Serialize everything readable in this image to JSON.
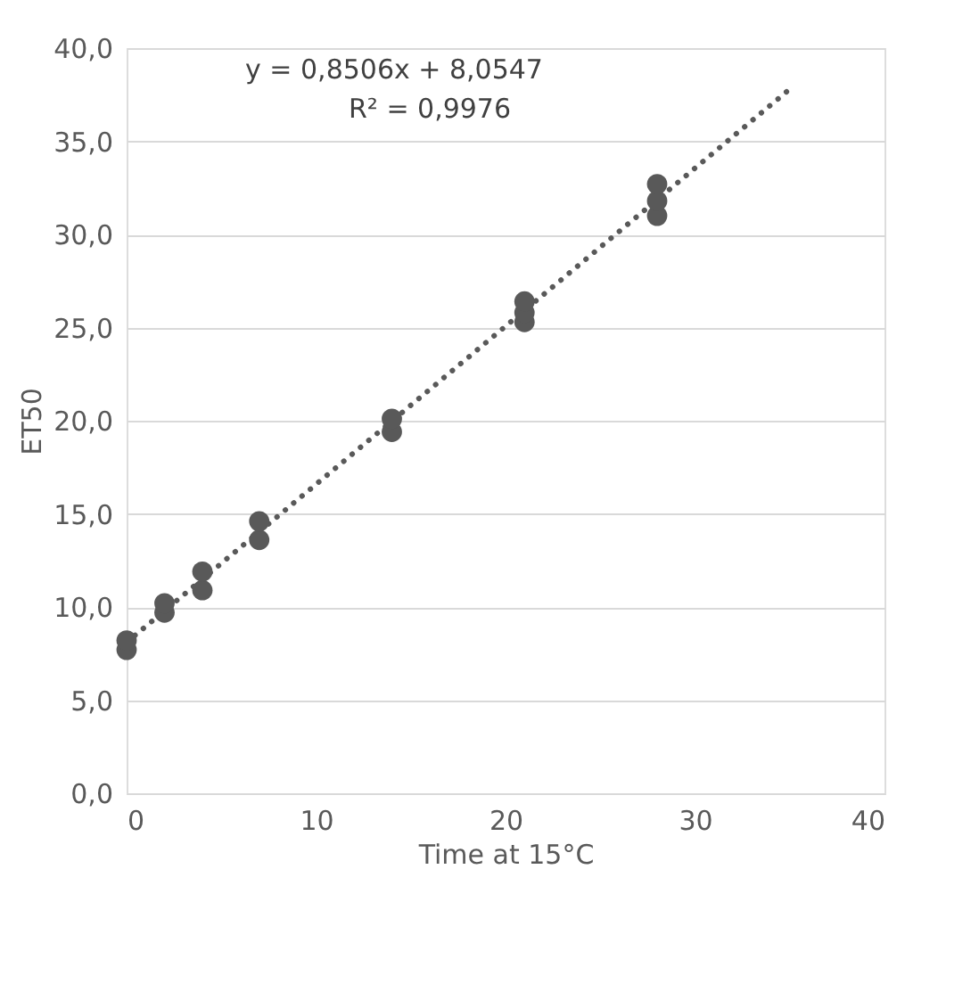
{
  "chart_data": {
    "type": "scatter",
    "xlabel": "Time at 15°C",
    "ylabel": "ET50",
    "xlim": [
      0,
      40
    ],
    "xticks": [
      0,
      10,
      20,
      30,
      40
    ],
    "ylim": [
      0,
      40
    ],
    "yticks": [
      {
        "value": 0,
        "label": "0,0"
      },
      {
        "value": 5,
        "label": "5,0"
      },
      {
        "value": 10,
        "label": "10,0"
      },
      {
        "value": 15,
        "label": "15,0"
      },
      {
        "value": 20,
        "label": "20,0"
      },
      {
        "value": 25,
        "label": "25,0"
      },
      {
        "value": 30,
        "label": "30,0"
      },
      {
        "value": 35,
        "label": "35,0"
      },
      {
        "value": 40,
        "label": "40,0"
      }
    ],
    "grid": "y",
    "annotations": [
      "y = 0,8506x + 8,0547",
      "R² = 0,9976"
    ],
    "series": [
      {
        "type": "line",
        "color": "#595959",
        "line_style": "dotted",
        "marker": "none",
        "x": [
          0,
          35
        ],
        "values": [
          8.1,
          37.8
        ]
      },
      {
        "type": "scatter",
        "color": "#595959",
        "marker": "circle",
        "x": [
          0,
          0,
          2,
          2,
          4,
          4,
          7,
          7,
          14,
          14,
          21,
          21,
          21,
          28,
          28,
          28
        ],
        "values": [
          7.7,
          8.2,
          9.7,
          10.2,
          10.9,
          11.9,
          13.6,
          14.6,
          19.4,
          20.1,
          25.3,
          25.8,
          26.4,
          31.0,
          31.8,
          32.7
        ]
      }
    ]
  }
}
